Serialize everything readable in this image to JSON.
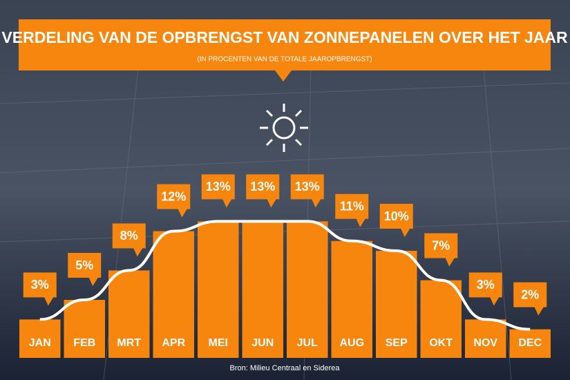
{
  "chart_data": {
    "type": "bar",
    "title": "VERDELING VAN DE OPBRENGST VAN ZONNEPANELEN OVER HET JAAR",
    "subtitle": "(IN PROCENTEN VAN DE TOTALE JAAROPBRENGST)",
    "source": "Bron: Milieu Centraal en Siderea",
    "categories": [
      "JAN",
      "FEB",
      "MRT",
      "APR",
      "MEI",
      "JUN",
      "JUL",
      "AUG",
      "SEP",
      "OKT",
      "NOV",
      "DEC"
    ],
    "values": [
      3,
      5,
      8,
      12,
      13,
      13,
      13,
      11,
      10,
      7,
      3,
      2
    ],
    "value_labels": [
      "3%",
      "5%",
      "8%",
      "12%",
      "13%",
      "13%",
      "13%",
      "11%",
      "10%",
      "7%",
      "3%",
      "2%"
    ],
    "color": "#f7860f"
  }
}
